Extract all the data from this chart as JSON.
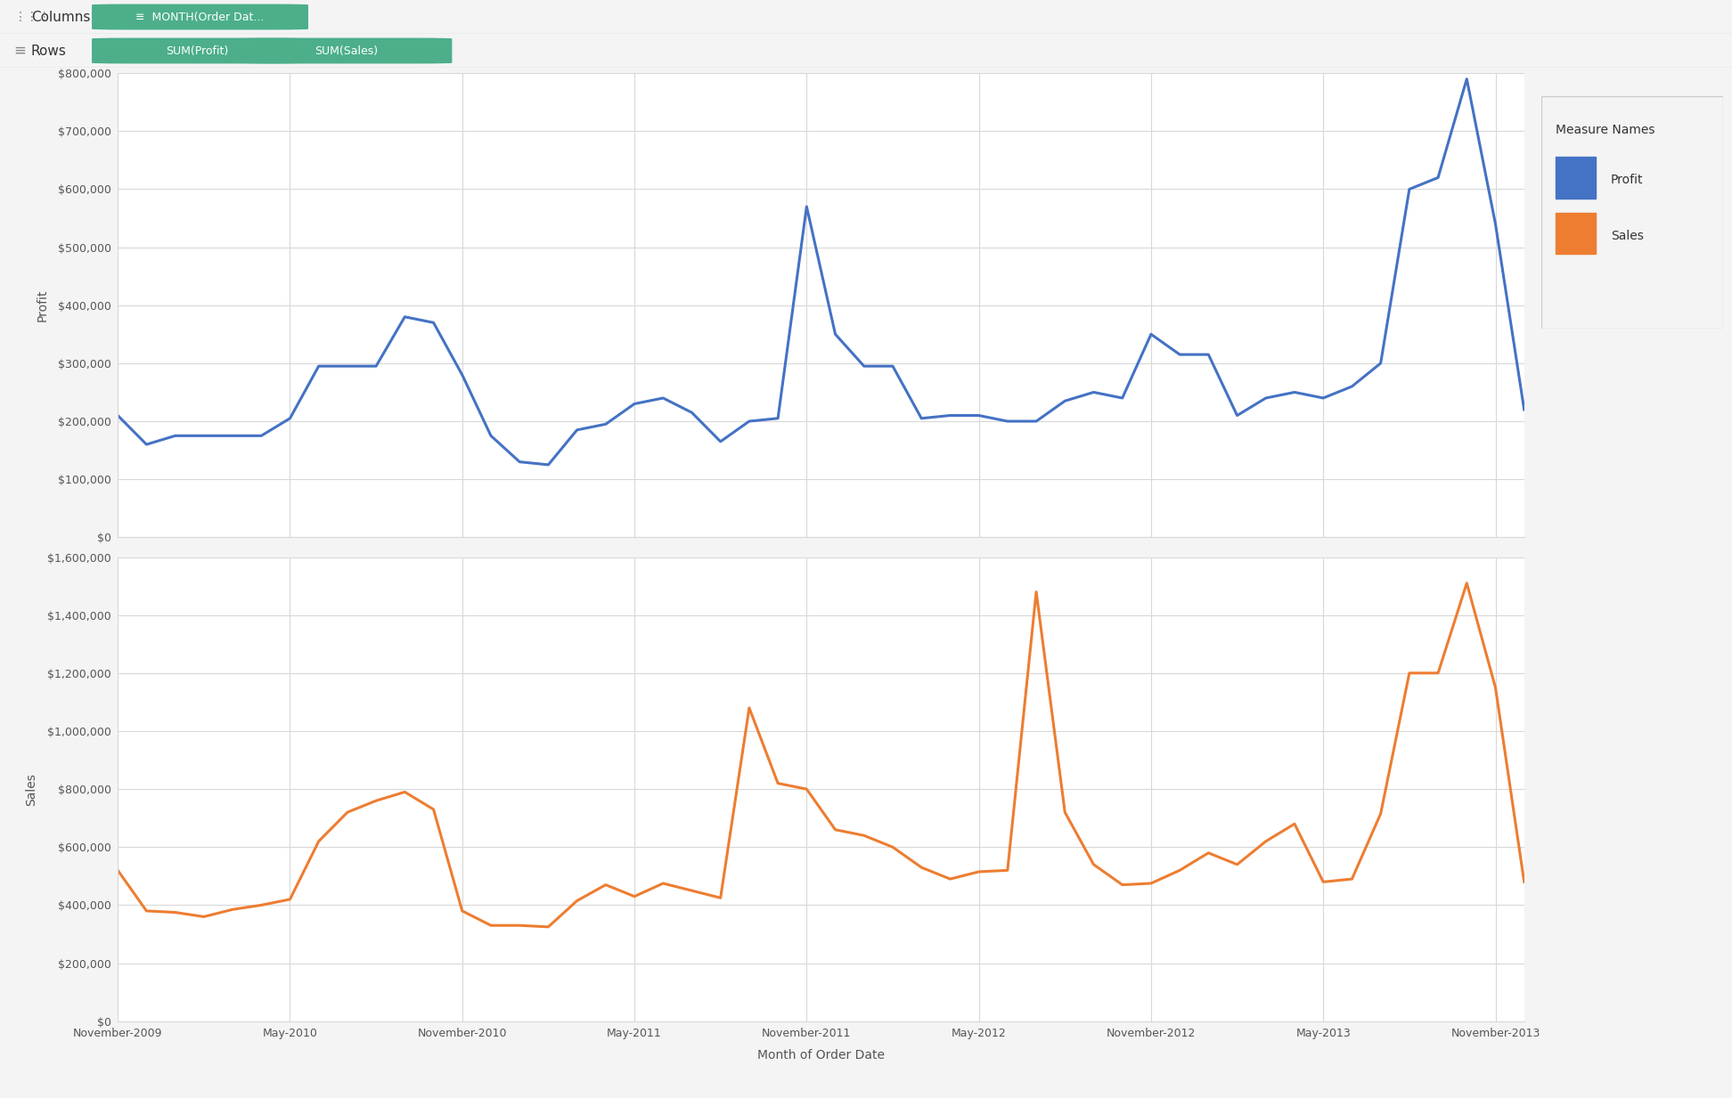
{
  "profit": [
    210000,
    160000,
    175000,
    175000,
    175000,
    175000,
    205000,
    295000,
    295000,
    295000,
    380000,
    370000,
    280000,
    175000,
    130000,
    125000,
    185000,
    195000,
    230000,
    240000,
    215000,
    165000,
    200000,
    205000,
    570000,
    350000,
    295000,
    295000,
    205000,
    210000,
    210000,
    200000,
    200000,
    235000,
    250000,
    240000,
    350000,
    315000,
    315000,
    210000,
    240000,
    250000,
    240000,
    260000,
    300000,
    600000,
    620000,
    790000,
    540000,
    220000
  ],
  "sales": [
    520000,
    380000,
    375000,
    360000,
    385000,
    400000,
    420000,
    620000,
    720000,
    760000,
    790000,
    730000,
    380000,
    330000,
    330000,
    325000,
    415000,
    470000,
    430000,
    475000,
    450000,
    425000,
    1080000,
    820000,
    800000,
    660000,
    640000,
    600000,
    530000,
    490000,
    515000,
    520000,
    1480000,
    720000,
    540000,
    470000,
    475000,
    520000,
    580000,
    540000,
    620000,
    680000,
    480000,
    490000,
    715000,
    1200000,
    1200000,
    1510000,
    1150000,
    480000
  ],
  "profit_color": "#4472c4",
  "sales_color": "#ed7d31",
  "profit_ylim": [
    0,
    800000
  ],
  "sales_ylim": [
    0,
    1600000
  ],
  "profit_yticks": [
    0,
    100000,
    200000,
    300000,
    400000,
    500000,
    600000,
    700000,
    800000
  ],
  "sales_yticks": [
    0,
    200000,
    400000,
    600000,
    800000,
    1000000,
    1200000,
    1400000,
    1600000
  ],
  "profit_ylabel": "Profit",
  "sales_ylabel": "Sales",
  "xlabel": "Month of Order Date",
  "legend_labels": [
    "Profit",
    "Sales"
  ],
  "legend_colors": [
    "#4472c4",
    "#ed7d31"
  ],
  "legend_title": "Measure Names",
  "background_color": "#f4f4f4",
  "plot_bg_color": "#ffffff",
  "grid_color": "#d8d8d8",
  "x_tick_labels": [
    "November-2009",
    "May-2010",
    "November-2010",
    "May-2011",
    "November-2011",
    "May-2012",
    "November-2012",
    "May-2013",
    "November-2013"
  ],
  "x_tick_positions": [
    0,
    6,
    12,
    18,
    24,
    30,
    36,
    42,
    48
  ],
  "header_bg": "#f4f4f4",
  "rows_bar_bg": "#e8e8e8",
  "pill_color": "#4caf8a",
  "line_width": 2.2
}
